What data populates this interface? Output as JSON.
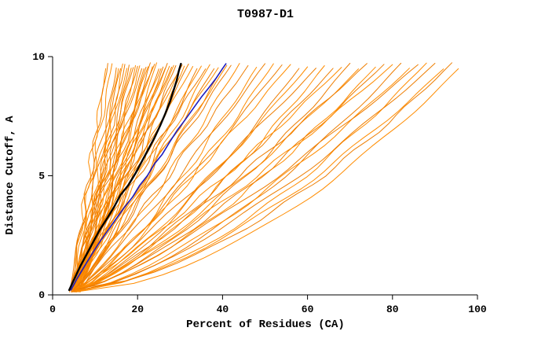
{
  "chart_data": {
    "type": "line",
    "title": "T0987-D1",
    "xlabel": "Percent of Residues (CA)",
    "ylabel": "Distance Cutoff, A",
    "xlim": [
      0,
      100
    ],
    "ylim": [
      0,
      10
    ],
    "xticks": [
      0,
      20,
      40,
      60,
      80,
      100
    ],
    "yticks": [
      0,
      5,
      10
    ],
    "grid": false,
    "legend": "none",
    "colors": {
      "background": "#ffffff",
      "axis": "#000000",
      "ensemble_orange": "#ff8c00",
      "ensemble_orange_alt": "#ee7d00",
      "highlight_black": "#000000",
      "highlight_blue": "#1c1cc0"
    },
    "highlighted_series": [
      {
        "name": "model-black",
        "color": "#000000",
        "width": 2.4,
        "points": [
          [
            3.9,
            0.2
          ],
          [
            5.2,
            0.7
          ],
          [
            6.5,
            1.2
          ],
          [
            8,
            1.7
          ],
          [
            9.5,
            2.2
          ],
          [
            11,
            2.7
          ],
          [
            12.8,
            3.2
          ],
          [
            14.5,
            3.7
          ],
          [
            16,
            4.2
          ],
          [
            17.8,
            4.6
          ],
          [
            19.5,
            5.1
          ],
          [
            21,
            5.6
          ],
          [
            22.5,
            6.1
          ],
          [
            24,
            6.6
          ],
          [
            25.3,
            7.1
          ],
          [
            26.5,
            7.6
          ],
          [
            27.6,
            8.1
          ],
          [
            28.5,
            8.6
          ],
          [
            29.2,
            9.0
          ],
          [
            29.7,
            9.4
          ],
          [
            30.2,
            9.7
          ]
        ]
      },
      {
        "name": "model-blue",
        "color": "#1c1cc0",
        "width": 1.6,
        "points": [
          [
            4.3,
            0.2
          ],
          [
            5.8,
            0.7
          ],
          [
            7.5,
            1.2
          ],
          [
            9.2,
            1.7
          ],
          [
            11,
            2.2
          ],
          [
            13,
            2.7
          ],
          [
            15,
            3.2
          ],
          [
            17,
            3.7
          ],
          [
            18.8,
            4.1
          ],
          [
            20.5,
            4.6
          ],
          [
            22.3,
            5.0
          ],
          [
            24,
            5.5
          ],
          [
            25.8,
            5.9
          ],
          [
            27.5,
            6.4
          ],
          [
            29.3,
            6.9
          ],
          [
            31,
            7.3
          ],
          [
            33,
            7.8
          ],
          [
            35,
            8.3
          ],
          [
            36.8,
            8.7
          ],
          [
            38.5,
            9.1
          ],
          [
            40,
            9.5
          ],
          [
            40.8,
            9.7
          ]
        ]
      }
    ],
    "ensemble": {
      "name": "orange-models",
      "curve_format": "[x_at_bottom, x_at_top, bend_exponent] with y spanning ~0.15 to ~9.7",
      "width": 1,
      "color_cycle": [
        "#ff8c00",
        "#ee7d00"
      ],
      "curves": [
        [
          4.5,
          12.5,
          1.05
        ],
        [
          4.2,
          13,
          0.95
        ],
        [
          5,
          14,
          1.1
        ],
        [
          4.8,
          15,
          0.9
        ],
        [
          5.5,
          15.5,
          1.0
        ],
        [
          4.0,
          16,
          1.15
        ],
        [
          5.2,
          16.5,
          0.88
        ],
        [
          6,
          17,
          1.0
        ],
        [
          4.4,
          17.5,
          1.08
        ],
        [
          5.8,
          18,
          0.92
        ],
        [
          4.6,
          18.5,
          1.0
        ],
        [
          5.0,
          19,
          1.12
        ],
        [
          6.2,
          19.5,
          0.9
        ],
        [
          4.3,
          20,
          1.0
        ],
        [
          5.5,
          20.5,
          0.95
        ],
        [
          4.8,
          21,
          1.1
        ],
        [
          5.2,
          21.5,
          0.87
        ],
        [
          6.5,
          22,
          1.0
        ],
        [
          4.5,
          22.5,
          1.05
        ],
        [
          5.0,
          23,
          0.93
        ],
        [
          5.8,
          23.5,
          1.0
        ],
        [
          4.2,
          24,
          1.1
        ],
        [
          6.0,
          24.5,
          0.9
        ],
        [
          4.9,
          25,
          1.0
        ],
        [
          5.4,
          25.5,
          1.06
        ],
        [
          4.6,
          26,
          0.94
        ],
        [
          5.1,
          26.5,
          1.0
        ],
        [
          6.3,
          27,
          1.08
        ],
        [
          4.4,
          27.5,
          0.9
        ],
        [
          5.6,
          28,
          1.0
        ],
        [
          4.8,
          28.5,
          1.04
        ],
        [
          5.3,
          29,
          0.92
        ],
        [
          6.1,
          30,
          1.0
        ],
        [
          4.5,
          30.5,
          1.1
        ],
        [
          5.0,
          31,
          0.88
        ],
        [
          5.7,
          32,
          1.0
        ],
        [
          4.7,
          33,
          1.05
        ],
        [
          6.4,
          34,
          0.9
        ],
        [
          5.2,
          35,
          1.0
        ],
        [
          4.9,
          36,
          1.08
        ],
        [
          5.5,
          37,
          0.92
        ],
        [
          6.0,
          38,
          1.0
        ],
        [
          4.6,
          39,
          1.02
        ],
        [
          5.3,
          40,
          0.9
        ],
        [
          5.9,
          41,
          1.0
        ],
        [
          5.0,
          42,
          0.95
        ],
        [
          5.5,
          44,
          0.85
        ],
        [
          4.8,
          46,
          0.9
        ],
        [
          6.2,
          48,
          0.8
        ],
        [
          5.0,
          50,
          0.88
        ],
        [
          5.6,
          52,
          0.78
        ],
        [
          4.5,
          54,
          0.85
        ],
        [
          6.0,
          56,
          0.9
        ],
        [
          5.2,
          58,
          0.75
        ],
        [
          5.8,
          60,
          0.82
        ],
        [
          4.7,
          62,
          0.88
        ],
        [
          5.4,
          64,
          0.72
        ],
        [
          6.3,
          66,
          0.8
        ],
        [
          4.9,
          68,
          0.85
        ],
        [
          5.5,
          70,
          0.7
        ],
        [
          5.1,
          72,
          0.78
        ],
        [
          6.1,
          74,
          0.85
        ],
        [
          4.6,
          76,
          0.68
        ],
        [
          5.7,
          78,
          0.75
        ],
        [
          5.3,
          80,
          0.82
        ],
        [
          4.8,
          82,
          0.65
        ],
        [
          6.2,
          84,
          0.72
        ],
        [
          5.0,
          86,
          0.78
        ],
        [
          5.6,
          88,
          0.62
        ],
        [
          5.2,
          90,
          0.7
        ],
        [
          5.9,
          92,
          0.65
        ],
        [
          4.7,
          94,
          0.6
        ],
        [
          5.4,
          95.5,
          0.58
        ]
      ]
    }
  }
}
